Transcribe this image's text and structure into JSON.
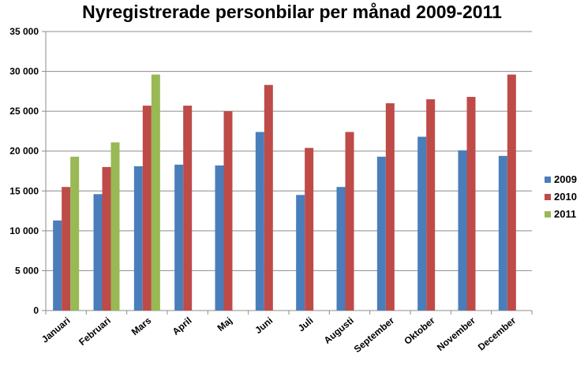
{
  "chart_data": {
    "type": "bar",
    "title": "Nyregistrerade personbilar per månad 2009-2011",
    "xlabel": "",
    "ylabel": "",
    "categories": [
      "Januari",
      "Februari",
      "Mars",
      "April",
      "Maj",
      "Juni",
      "Juli",
      "Augusti",
      "September",
      "Oktober",
      "November",
      "December"
    ],
    "series": [
      {
        "name": "2009",
        "color": "#4a7ebb",
        "values": [
          11300,
          14600,
          18100,
          18300,
          18200,
          22400,
          14500,
          15500,
          19300,
          21800,
          20100,
          19400
        ]
      },
      {
        "name": "2010",
        "color": "#be4b48",
        "values": [
          15500,
          18000,
          25700,
          25700,
          25000,
          28300,
          20400,
          22400,
          26000,
          26500,
          26800,
          29600
        ]
      },
      {
        "name": "2011",
        "color": "#98b954",
        "values": [
          19300,
          21100,
          29600,
          null,
          null,
          null,
          null,
          null,
          null,
          null,
          null,
          null
        ]
      }
    ],
    "ylim": [
      0,
      35000
    ],
    "yticks": [
      0,
      5000,
      10000,
      15000,
      20000,
      25000,
      30000,
      35000
    ],
    "ytick_labels": [
      "0",
      "5 000",
      "10 000",
      "15 000",
      "20 000",
      "25 000",
      "30 000",
      "35 000"
    ],
    "grid": true,
    "legend_position": "right"
  }
}
